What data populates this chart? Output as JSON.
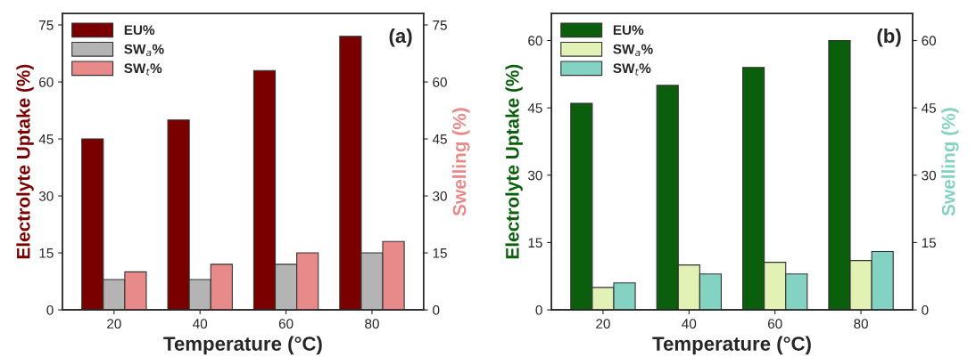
{
  "chart_data": [
    {
      "type": "bar",
      "categories": [
        "20",
        "40",
        "60",
        "80"
      ],
      "xlabel": "Temperature (°C)",
      "ylabel": "Electrolyte Uptake (%)",
      "y2label": "Swelling (%)",
      "annotations": [
        "(a)"
      ],
      "ylim": [
        0,
        78
      ],
      "yticks": [
        0,
        15,
        30,
        45,
        60,
        75
      ],
      "y2lim": [
        0,
        78
      ],
      "y2ticks": [
        0,
        15,
        30,
        45,
        60,
        75
      ],
      "legend": "top left",
      "grid": false,
      "series": [
        {
          "name": "EU%",
          "color": "#7a0000",
          "values": [
            45,
            50,
            63,
            72
          ]
        },
        {
          "name": "SW$_{a}$%",
          "color": "#b4b4b4",
          "axis": "y2",
          "values": [
            8,
            8,
            12,
            15
          ]
        },
        {
          "name": "SW$_{t}$%",
          "color": "#e88a8a",
          "axis": "y2",
          "values": [
            10,
            12,
            15,
            18
          ]
        }
      ]
    },
    {
      "type": "bar",
      "categories": [
        "20",
        "40",
        "60",
        "80"
      ],
      "xlabel": "Temperature (°C)",
      "ylabel": "Electrolyte Uptake (%)",
      "y2label": "Swelling (%)",
      "annotations": [
        "(b)"
      ],
      "ylim": [
        0,
        66
      ],
      "yticks": [
        0,
        15,
        30,
        45,
        60
      ],
      "y2lim": [
        0,
        66
      ],
      "y2ticks": [
        0,
        15,
        30,
        45,
        60
      ],
      "legend": "top left",
      "grid": false,
      "series": [
        {
          "name": "EU%",
          "color": "#0b5e0b",
          "values": [
            46,
            50,
            54,
            60
          ]
        },
        {
          "name": "SW$_{a}$%",
          "color": "#e2f2b4",
          "axis": "y2",
          "values": [
            5,
            10,
            10.6,
            11
          ]
        },
        {
          "name": "SW$_{t}$%",
          "color": "#84d2c2",
          "axis": "y2",
          "values": [
            6,
            8,
            8,
            13
          ]
        }
      ]
    }
  ]
}
